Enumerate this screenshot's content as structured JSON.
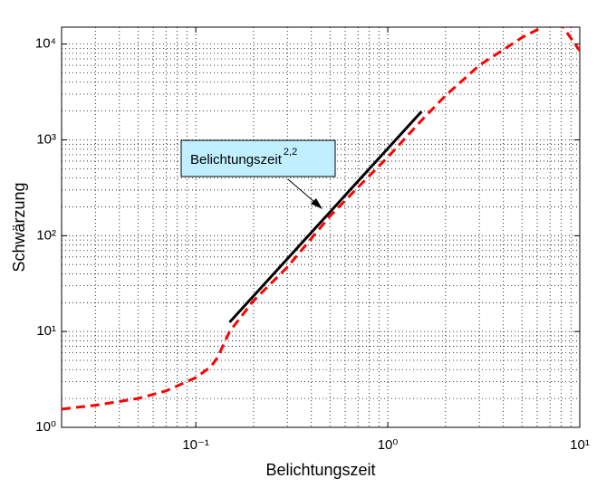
{
  "chart_data": {
    "type": "line",
    "log_x": true,
    "log_y": true,
    "grid": true,
    "minor_grid": true,
    "xlabel": "Belichtungszeit",
    "ylabel": "Schwärzung",
    "xlim": [
      0.02,
      10
    ],
    "ylim": [
      1,
      15000
    ],
    "xticks": [
      {
        "value": 0.1,
        "label": "10⁻¹"
      },
      {
        "value": 1,
        "label": "10⁰"
      },
      {
        "value": 10,
        "label": "10¹"
      }
    ],
    "yticks": [
      {
        "value": 1,
        "label": "10⁰"
      },
      {
        "value": 10,
        "label": "10¹"
      },
      {
        "value": 100,
        "label": "10²"
      },
      {
        "value": 1000,
        "label": "10³"
      },
      {
        "value": 10000,
        "label": "10⁴"
      }
    ],
    "series": [
      {
        "color": "#ff0000",
        "dash": true,
        "x": [
          0.02,
          0.03,
          0.05,
          0.07,
          0.1,
          0.12,
          0.13,
          0.15,
          0.2,
          0.3,
          0.5,
          0.7,
          1,
          1.5,
          2,
          3,
          5,
          7,
          8,
          10
        ],
        "values": [
          1.55,
          1.7,
          2.0,
          2.4,
          3.3,
          4.3,
          5.4,
          10,
          21,
          47,
          160,
          320,
          660,
          1600,
          2900,
          6000,
          11700,
          16500,
          16000,
          8500
        ]
      },
      {
        "color": "#000000",
        "dash": false,
        "x": [
          0.15,
          1.5
        ],
        "values": [
          12.5,
          1980
        ]
      }
    ],
    "annotation": {
      "text": "Belichtungszeit",
      "superscript": "2,2"
    }
  }
}
